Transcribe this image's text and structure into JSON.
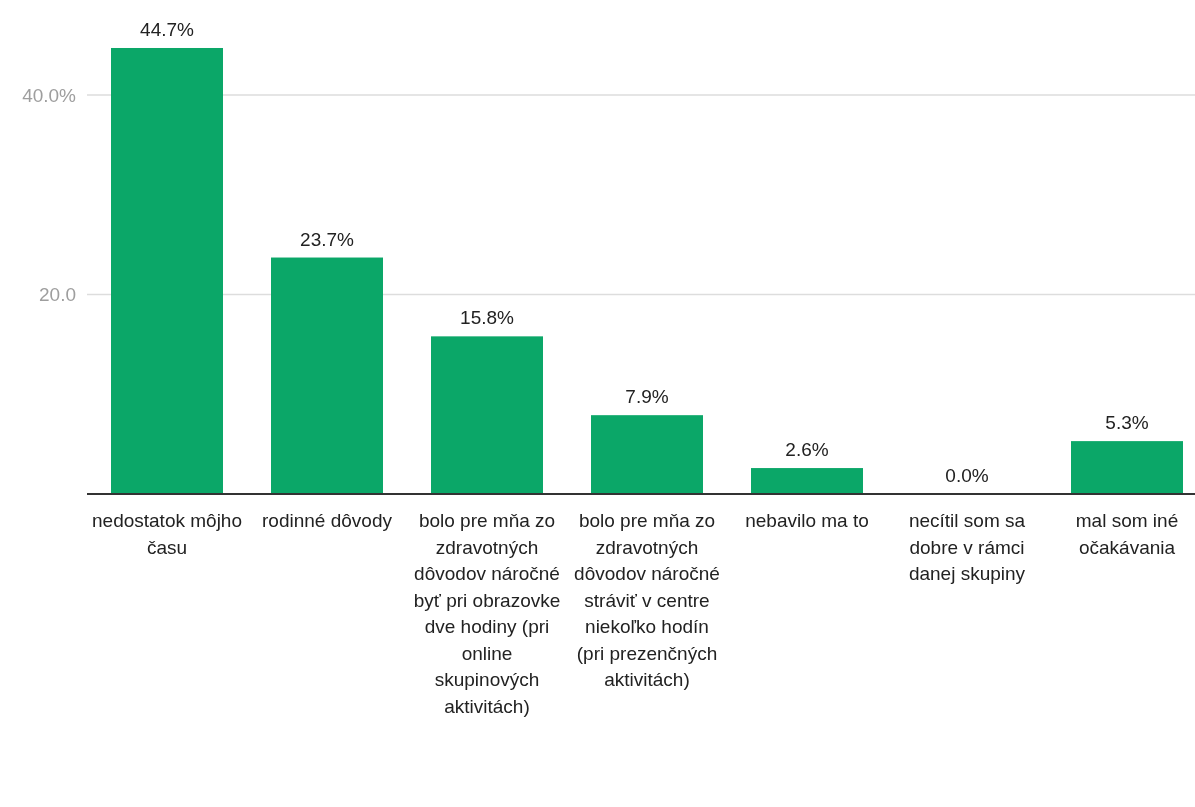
{
  "chart_data": {
    "type": "bar",
    "categories": [
      "nedostatok môjho času",
      "rodinné dôvody",
      "bolo pre mňa zo zdravotných dôvodov náročné byť pri obrazovke dve hodiny (pri online skupinových aktivitách)",
      "bolo pre mňa zo zdravotných dôvodov náročné stráviť v centre niekoľko hodín (pri prezenčných aktivitách)",
      "nebavilo ma to",
      "necítil som sa dobre v rámci danej skupiny",
      "mal som iné očakávania"
    ],
    "values": [
      44.7,
      23.7,
      15.8,
      7.9,
      2.6,
      0.0,
      5.3
    ],
    "value_labels": [
      "44.7%",
      "23.7%",
      "15.8%",
      "7.9%",
      "2.6%",
      "0.0%",
      "5.3%"
    ],
    "color": "#0ba768",
    "ylim": [
      0,
      45
    ],
    "yticks": [
      {
        "value": 20,
        "label": "20.0"
      },
      {
        "value": 40,
        "label": "40.0%"
      }
    ],
    "grid": "y"
  }
}
